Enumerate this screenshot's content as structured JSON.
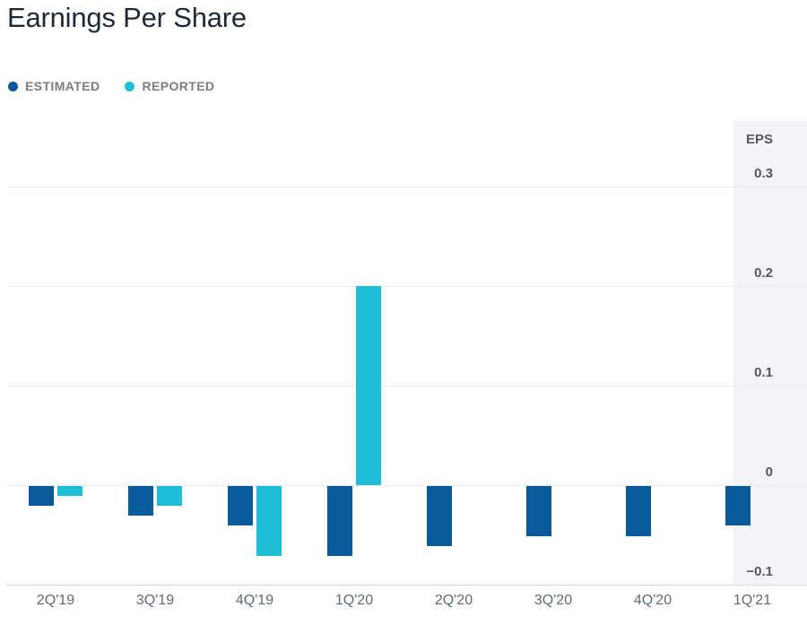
{
  "header": {
    "title": "Earnings Per Share"
  },
  "legend": {
    "items": [
      {
        "label": "ESTIMATED",
        "color": "#0a5a9c"
      },
      {
        "label": "REPORTED",
        "color": "#20bdd6"
      }
    ]
  },
  "chart_data": {
    "type": "bar",
    "title": "Earnings Per Share",
    "categories": [
      "2Q'19",
      "3Q'19",
      "4Q'19",
      "1Q'20",
      "2Q'20",
      "3Q'20",
      "4Q'20",
      "1Q'21"
    ],
    "series": [
      {
        "name": "ESTIMATED",
        "color": "#0a5a9c",
        "values": [
          -0.02,
          -0.03,
          -0.04,
          -0.07,
          -0.06,
          -0.05,
          -0.05,
          -0.04
        ]
      },
      {
        "name": "REPORTED",
        "color": "#20bdd6",
        "values": [
          -0.01,
          -0.02,
          -0.07,
          0.2,
          null,
          null,
          null,
          null
        ]
      }
    ],
    "xlabel": "",
    "ylabel": "EPS",
    "ylim": [
      -0.1,
      0.365
    ],
    "yticks": [
      0.3,
      0.2,
      0.1,
      0,
      -0.1
    ],
    "ytick_labels": [
      "0.3",
      "0.2",
      "0.1",
      "0",
      "−0.1"
    ],
    "legend_position": "top-left",
    "grid": "horizontal"
  }
}
